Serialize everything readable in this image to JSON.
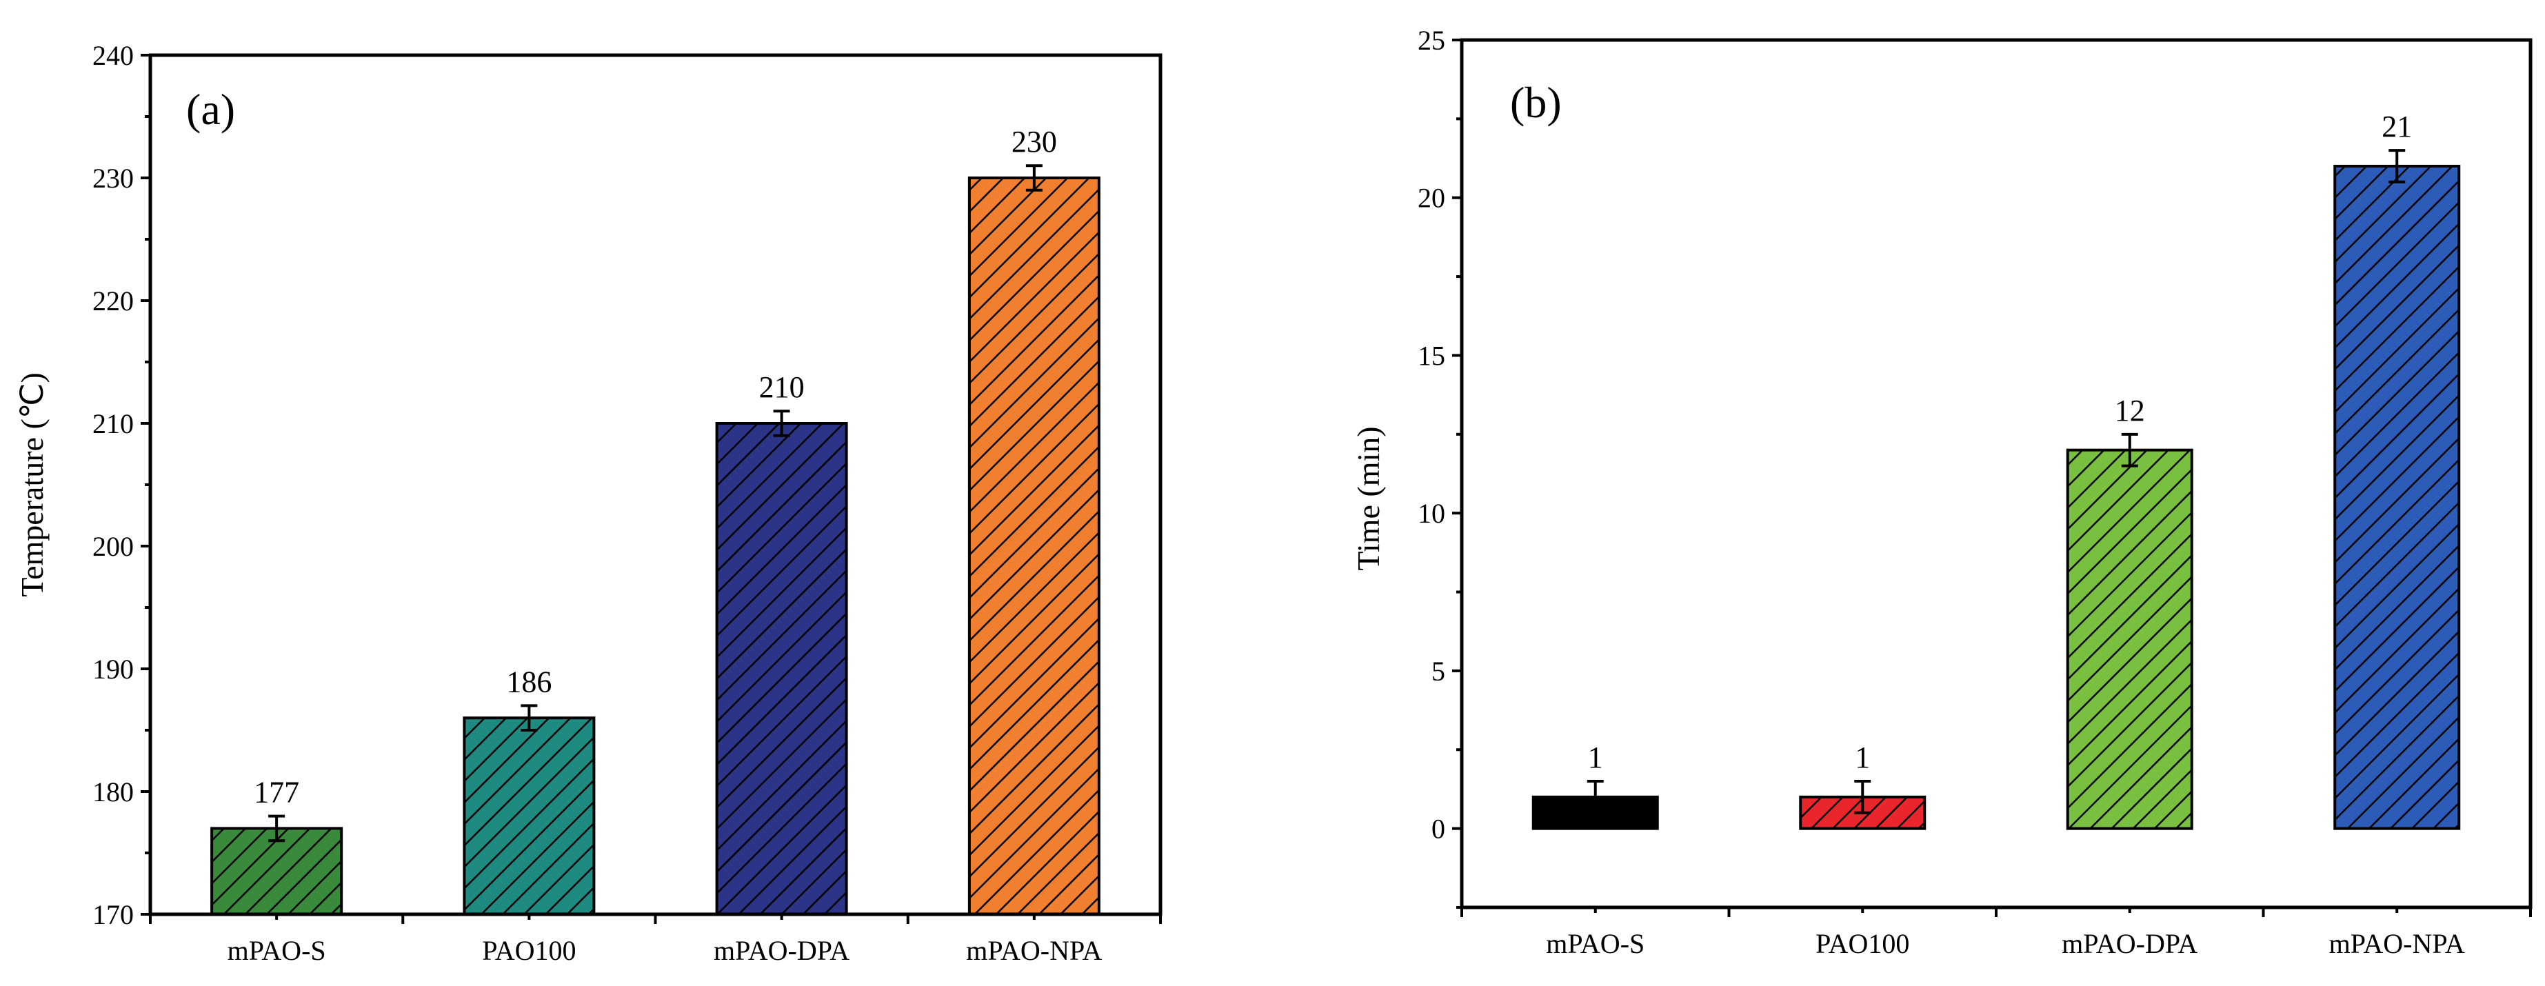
{
  "chart_data": [
    {
      "type": "bar",
      "panel_label": "(a)",
      "title": "",
      "xlabel": "",
      "ylabel": "Temperature (℃)",
      "ylim": [
        170,
        240
      ],
      "yticks": [
        170,
        180,
        190,
        200,
        210,
        220,
        230,
        240
      ],
      "yminor_step": 5,
      "categories": [
        "mPAO-S",
        "PAO100",
        "mPAO-DPA",
        "mPAO-NPA"
      ],
      "values": [
        177,
        186,
        210,
        230
      ],
      "errors": [
        1,
        1,
        1,
        1
      ],
      "value_labels": [
        "177",
        "186",
        "210",
        "230"
      ],
      "colors": [
        "#3a8a3c",
        "#1f8a80",
        "#2b3486",
        "#f08030"
      ],
      "hatched": [
        true,
        true,
        true,
        true
      ],
      "grid": false
    },
    {
      "type": "bar",
      "panel_label": "(b)",
      "title": "",
      "xlabel": "",
      "ylabel": "Time (min)",
      "ylim": [
        -2.5,
        25
      ],
      "yticks": [
        0,
        5,
        10,
        15,
        20,
        25
      ],
      "yminor_step": 2.5,
      "categories": [
        "mPAO-S",
        "PAO100",
        "mPAO-DPA",
        "mPAO-NPA"
      ],
      "values": [
        1,
        1,
        12,
        21
      ],
      "errors": [
        0.5,
        0.5,
        0.5,
        0.5
      ],
      "value_labels": [
        "1",
        "1",
        "12",
        "21"
      ],
      "colors": [
        "#000000",
        "#e8262b",
        "#79c040",
        "#2c5cb8"
      ],
      "hatched": [
        false,
        true,
        true,
        true
      ],
      "grid": false
    }
  ]
}
